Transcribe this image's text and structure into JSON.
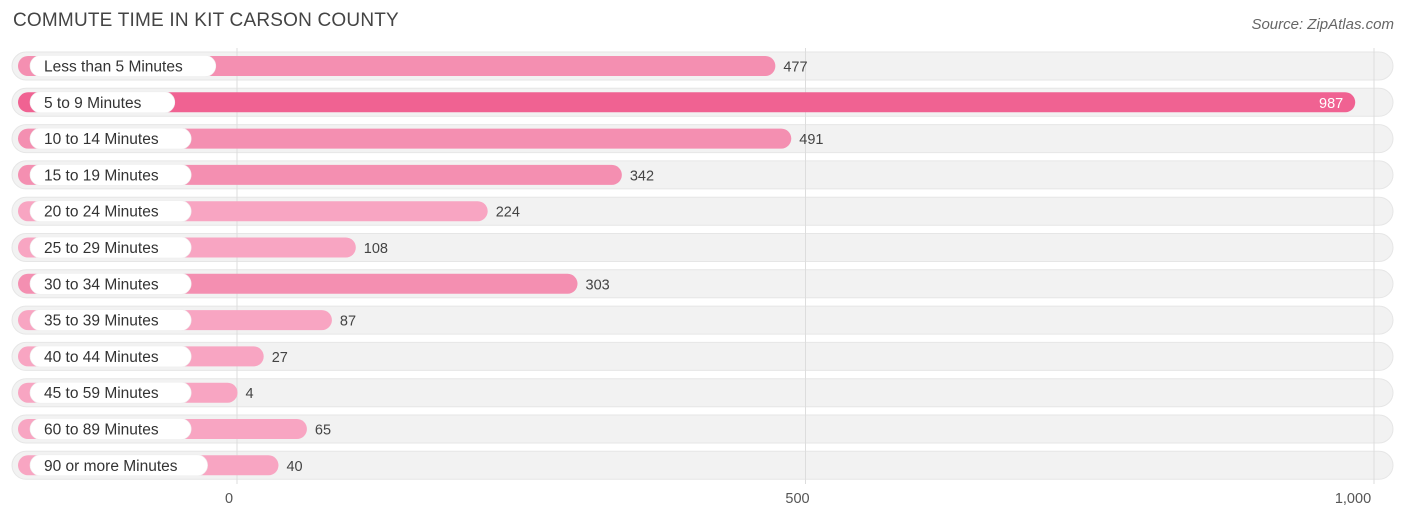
{
  "title": "COMMUTE TIME IN KIT CARSON COUNTY",
  "source": "Source: ZipAtlas.com",
  "colors": {
    "highlight": "#f06292",
    "bar_light": "#f8a5c2",
    "bar_mid": "#f48fb1",
    "track": "#f2f2f2",
    "grid": "#dddddd",
    "label_text": "#333333",
    "value_text": "#444444"
  },
  "chart_data": {
    "type": "bar",
    "orientation": "horizontal",
    "categories": [
      "Less than 5 Minutes",
      "5 to 9 Minutes",
      "10 to 14 Minutes",
      "15 to 19 Minutes",
      "20 to 24 Minutes",
      "25 to 29 Minutes",
      "30 to 34 Minutes",
      "35 to 39 Minutes",
      "40 to 44 Minutes",
      "45 to 59 Minutes",
      "60 to 89 Minutes",
      "90 or more Minutes"
    ],
    "values": [
      477,
      987,
      491,
      342,
      224,
      108,
      303,
      87,
      27,
      4,
      65,
      40
    ],
    "value_labels": [
      "477",
      "987",
      "491",
      "342",
      "224",
      "108",
      "303",
      "87",
      "27",
      "4",
      "65",
      "40"
    ],
    "x_ticks": [
      0,
      500,
      1000
    ],
    "x_tick_labels": [
      "0",
      "500",
      "1,000"
    ],
    "xlim": [
      0,
      1000
    ],
    "highlight_index": 1,
    "grid": true
  }
}
